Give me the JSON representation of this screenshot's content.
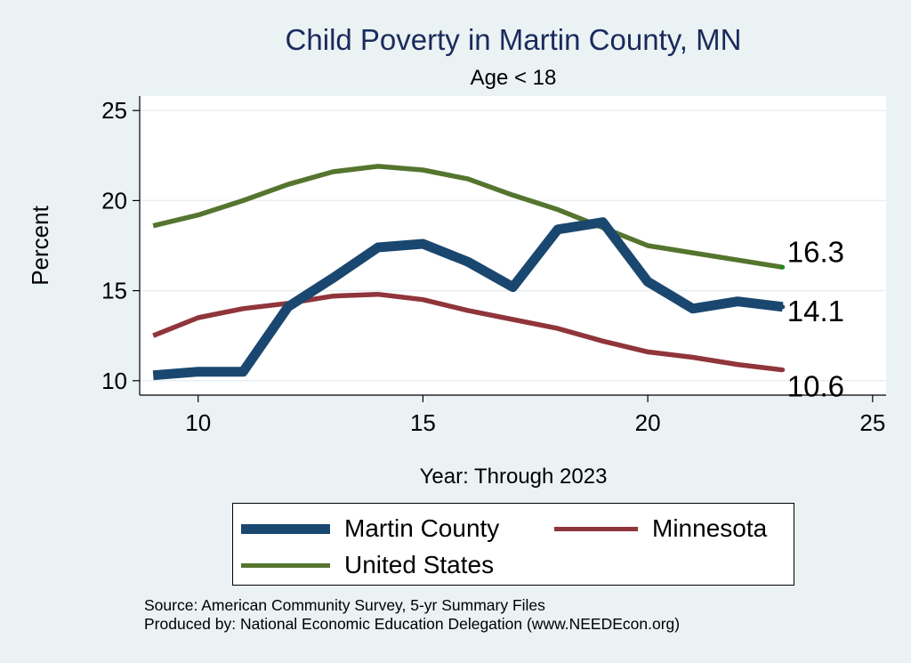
{
  "chart_data": {
    "type": "line",
    "title": "Child Poverty in Martin County, MN",
    "subtitle": "Age < 18",
    "xlabel": "Year: Through 2023",
    "ylabel": "Percent",
    "xlim": [
      8.7,
      25.3
    ],
    "ylim": [
      9.2,
      25.8
    ],
    "xticks": [
      10,
      15,
      20,
      25
    ],
    "yticks": [
      10,
      15,
      20,
      25
    ],
    "x": [
      9,
      10,
      11,
      12,
      13,
      14,
      15,
      16,
      17,
      18,
      19,
      20,
      21,
      22,
      23
    ],
    "series": [
      {
        "name": "Martin County",
        "color": "#1a476f",
        "width": 11,
        "values": [
          10.3,
          10.5,
          10.5,
          14.1,
          15.7,
          17.4,
          17.6,
          16.6,
          15.2,
          18.4,
          18.8,
          15.5,
          14.0,
          14.4,
          14.1
        ],
        "end_label": "14.1"
      },
      {
        "name": "Minnesota",
        "color": "#90353b",
        "width": 5.5,
        "values": [
          12.5,
          13.5,
          14.0,
          14.3,
          14.7,
          14.8,
          14.5,
          13.9,
          13.4,
          12.9,
          12.2,
          11.6,
          11.3,
          10.9,
          10.6
        ],
        "end_label": "10.6"
      },
      {
        "name": "United States",
        "color": "#55752f",
        "width": 5.5,
        "values": [
          18.6,
          19.2,
          20.0,
          20.9,
          21.6,
          21.9,
          21.7,
          21.2,
          20.3,
          19.5,
          18.5,
          17.5,
          17.1,
          16.7,
          16.3
        ],
        "end_label": "16.3"
      }
    ],
    "legend": {
      "placement": "bottom",
      "items": [
        "Martin County",
        "Minnesota",
        "United States"
      ]
    },
    "grid": true
  },
  "footer": {
    "source": "Source: American Community Survey, 5-yr Summary Files",
    "produced": "Produced by: National Economic Education Delegation (www.NEEDEcon.org)"
  }
}
